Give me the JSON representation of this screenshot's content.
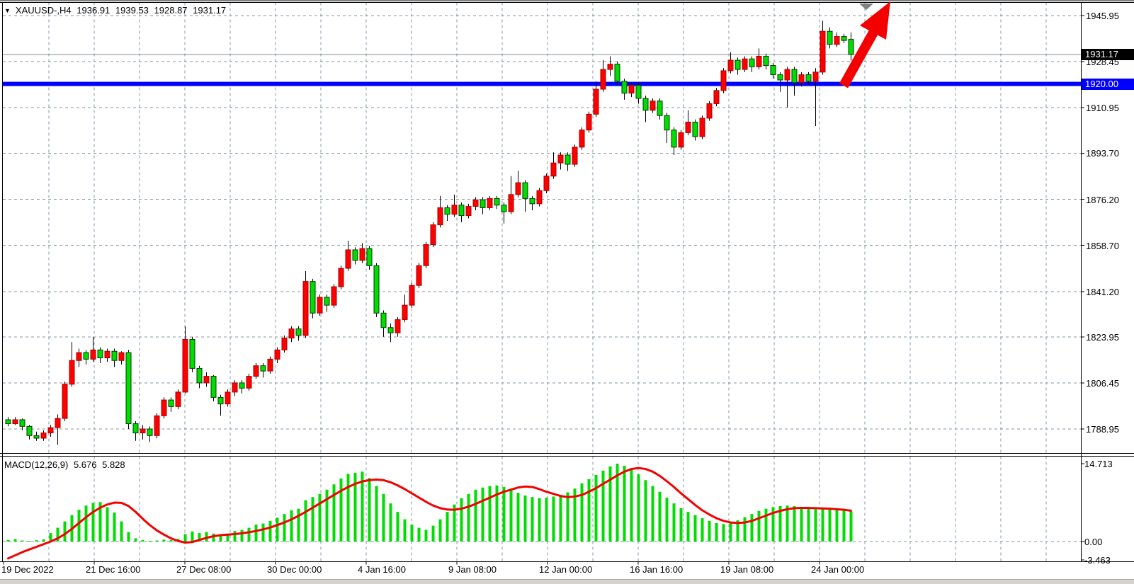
{
  "header": {
    "symbol": "XAUUSD-,H4",
    "open": "1936.91",
    "high": "1939.53",
    "low": "1928.87",
    "close": "1931.17"
  },
  "price_axis": {
    "labels": [
      {
        "text": "1945.95",
        "price": 1945.95
      },
      {
        "text": "1928.45",
        "price": 1928.45
      },
      {
        "text": "1910.95",
        "price": 1910.95
      },
      {
        "text": "1893.70",
        "price": 1893.7
      },
      {
        "text": "1876.20",
        "price": 1876.2
      },
      {
        "text": "1858.70",
        "price": 1858.7
      },
      {
        "text": "1841.20",
        "price": 1841.2
      },
      {
        "text": "1823.95",
        "price": 1823.95
      },
      {
        "text": "1806.45",
        "price": 1806.45
      },
      {
        "text": "1788.95",
        "price": 1788.95
      }
    ],
    "current_price_label": "1931.17",
    "level_label": "1920.00"
  },
  "time_axis": {
    "labels": [
      {
        "text": "19 Dec 2022",
        "k": -1
      },
      {
        "text": "21 Dec 16:00",
        "k": 1
      },
      {
        "text": "27 Dec 08:00",
        "k": 3
      },
      {
        "text": "30 Dec 00:00",
        "k": 5
      },
      {
        "text": "4 Jan 16:00",
        "k": 7
      },
      {
        "text": "9 Jan 08:00",
        "k": 9
      },
      {
        "text": "12 Jan 00:00",
        "k": 11
      },
      {
        "text": "16 Jan 16:00",
        "k": 13
      },
      {
        "text": "19 Jan 08:00",
        "k": 15
      },
      {
        "text": "24 Jan 00:00",
        "k": 17
      }
    ]
  },
  "macd_panel": {
    "label": "MACD(12,26,9)",
    "macd_value": "5.676",
    "signal_value": "5.828",
    "axis_labels": [
      {
        "text": "14.713",
        "value": 14.713
      },
      {
        "text": "0.00",
        "value": 0.0
      },
      {
        "text": "-3.463",
        "value": -3.463
      }
    ]
  },
  "colors": {
    "bull_candle": "#ff0000",
    "bull_border": "#a80000",
    "bear_candle": "#00dd00",
    "bear_border": "#003b00",
    "wick": "#000000",
    "grid": "#8696a6",
    "level_line": "#0000fe",
    "bid_line": "#8c8c8c",
    "macd_histogram": "#00dd00",
    "macd_signal": "#f40000",
    "arrow": "#f40000",
    "marker_triangle": "#808080",
    "pane_border": "#000000"
  },
  "chart_data": {
    "type": "candlestick",
    "symbol": "XAUUSD",
    "timeframe": "H4",
    "current_price": 1931.17,
    "horizontal_level": 1920.0,
    "price_gridlines": [
      1945.95,
      1928.45,
      1910.95,
      1893.7,
      1876.2,
      1858.7,
      1841.2,
      1823.95,
      1806.45,
      1788.95
    ],
    "candles_ohlc": [
      [
        1792.5,
        1793.5,
        1790.0,
        1791.0
      ],
      [
        1791.0,
        1793.5,
        1790.5,
        1792.5
      ],
      [
        1792.5,
        1793.0,
        1788.5,
        1790.0
      ],
      [
        1790.0,
        1790.5,
        1785.0,
        1786.5
      ],
      [
        1786.5,
        1788.0,
        1784.5,
        1785.5
      ],
      [
        1785.5,
        1788.5,
        1784.5,
        1787.5
      ],
      [
        1787.5,
        1790.5,
        1786.0,
        1789.5
      ],
      [
        1789.5,
        1794.5,
        1783.0,
        1793.0
      ],
      [
        1793.0,
        1807.0,
        1792.0,
        1806.0
      ],
      [
        1806.0,
        1822.0,
        1805.0,
        1815.0
      ],
      [
        1815.0,
        1819.5,
        1812.5,
        1818.0
      ],
      [
        1818.0,
        1819.0,
        1813.5,
        1815.5
      ],
      [
        1815.5,
        1824.0,
        1814.5,
        1819.0
      ],
      [
        1819.0,
        1820.0,
        1814.0,
        1816.0
      ],
      [
        1816.0,
        1819.5,
        1814.5,
        1818.5
      ],
      [
        1818.5,
        1819.5,
        1812.5,
        1815.0
      ],
      [
        1815.0,
        1818.5,
        1813.5,
        1818.0
      ],
      [
        1818.0,
        1819.0,
        1789.0,
        1791.0
      ],
      [
        1791.0,
        1792.0,
        1784.5,
        1787.5
      ],
      [
        1787.5,
        1790.5,
        1785.0,
        1789.0
      ],
      [
        1789.0,
        1790.0,
        1784.0,
        1786.5
      ],
      [
        1786.5,
        1795.0,
        1785.5,
        1794.0
      ],
      [
        1794.0,
        1801.0,
        1793.0,
        1800.0
      ],
      [
        1800.0,
        1801.0,
        1795.5,
        1797.5
      ],
      [
        1797.5,
        1804.0,
        1796.5,
        1803.0
      ],
      [
        1803.0,
        1828.0,
        1802.5,
        1823.0
      ],
      [
        1823.0,
        1824.0,
        1810.5,
        1812.0
      ],
      [
        1812.0,
        1813.0,
        1804.5,
        1806.5
      ],
      [
        1806.5,
        1810.5,
        1805.0,
        1809.0
      ],
      [
        1809.0,
        1809.5,
        1799.5,
        1801.0
      ],
      [
        1801.0,
        1802.0,
        1794.0,
        1798.5
      ],
      [
        1798.5,
        1804.0,
        1797.5,
        1803.0
      ],
      [
        1803.0,
        1807.5,
        1801.5,
        1806.5
      ],
      [
        1806.5,
        1807.5,
        1802.5,
        1804.5
      ],
      [
        1804.5,
        1810.0,
        1803.5,
        1809.0
      ],
      [
        1809.0,
        1814.0,
        1808.0,
        1813.0
      ],
      [
        1813.0,
        1814.0,
        1808.5,
        1811.0
      ],
      [
        1811.0,
        1816.5,
        1810.0,
        1815.5
      ],
      [
        1815.5,
        1820.0,
        1814.0,
        1819.0
      ],
      [
        1819.0,
        1824.5,
        1818.0,
        1823.5
      ],
      [
        1823.5,
        1828.0,
        1822.0,
        1827.0
      ],
      [
        1827.0,
        1828.0,
        1822.5,
        1824.5
      ],
      [
        1824.5,
        1849.0,
        1823.5,
        1845.0
      ],
      [
        1845.0,
        1846.0,
        1831.0,
        1833.0
      ],
      [
        1833.0,
        1840.0,
        1832.0,
        1839.0
      ],
      [
        1839.0,
        1840.0,
        1833.5,
        1836.0
      ],
      [
        1836.0,
        1844.0,
        1835.0,
        1843.0
      ],
      [
        1843.0,
        1851.0,
        1842.0,
        1850.0
      ],
      [
        1850.0,
        1860.5,
        1849.0,
        1857.0
      ],
      [
        1857.0,
        1858.0,
        1851.5,
        1853.0
      ],
      [
        1853.0,
        1859.5,
        1852.0,
        1857.5
      ],
      [
        1857.5,
        1858.5,
        1849.5,
        1851.0
      ],
      [
        1851.0,
        1852.0,
        1831.5,
        1833.0
      ],
      [
        1833.0,
        1834.0,
        1824.0,
        1827.5
      ],
      [
        1827.5,
        1829.0,
        1822.0,
        1825.5
      ],
      [
        1825.5,
        1831.5,
        1824.0,
        1830.5
      ],
      [
        1830.5,
        1840.0,
        1829.5,
        1836.0
      ],
      [
        1836.0,
        1844.5,
        1835.0,
        1843.5
      ],
      [
        1843.5,
        1852.0,
        1842.5,
        1851.0
      ],
      [
        1851.0,
        1860.0,
        1850.0,
        1859.0
      ],
      [
        1859.0,
        1867.5,
        1858.0,
        1866.5
      ],
      [
        1866.5,
        1877.5,
        1865.5,
        1873.0
      ],
      [
        1873.0,
        1874.0,
        1868.0,
        1870.5
      ],
      [
        1870.5,
        1878.0,
        1869.5,
        1874.0
      ],
      [
        1874.0,
        1875.0,
        1867.5,
        1870.0
      ],
      [
        1870.0,
        1874.5,
        1869.0,
        1873.5
      ],
      [
        1873.5,
        1877.0,
        1872.0,
        1876.0
      ],
      [
        1876.0,
        1877.0,
        1870.5,
        1873.0
      ],
      [
        1873.0,
        1877.5,
        1872.0,
        1876.5
      ],
      [
        1876.5,
        1877.5,
        1872.5,
        1874.0
      ],
      [
        1874.0,
        1875.0,
        1867.0,
        1871.5
      ],
      [
        1871.5,
        1885.0,
        1870.5,
        1878.0
      ],
      [
        1878.0,
        1887.0,
        1877.0,
        1882.5
      ],
      [
        1882.5,
        1883.5,
        1871.5,
        1876.5
      ],
      [
        1876.5,
        1877.5,
        1872.0,
        1874.5
      ],
      [
        1874.5,
        1880.5,
        1873.5,
        1879.5
      ],
      [
        1879.5,
        1886.0,
        1878.5,
        1885.0
      ],
      [
        1885.0,
        1894.0,
        1884.0,
        1890.0
      ],
      [
        1890.0,
        1894.0,
        1887.5,
        1893.0
      ],
      [
        1893.0,
        1894.0,
        1887.0,
        1889.5
      ],
      [
        1889.5,
        1897.0,
        1888.5,
        1896.0
      ],
      [
        1896.0,
        1903.5,
        1895.0,
        1902.5
      ],
      [
        1902.5,
        1909.5,
        1901.5,
        1908.5
      ],
      [
        1908.5,
        1921.0,
        1907.5,
        1918.0
      ],
      [
        1918.0,
        1929.0,
        1917.0,
        1925.5
      ],
      [
        1925.5,
        1930.5,
        1923.0,
        1927.5
      ],
      [
        1927.5,
        1928.5,
        1919.5,
        1921.0
      ],
      [
        1921.0,
        1922.0,
        1914.0,
        1916.5
      ],
      [
        1916.5,
        1920.5,
        1915.0,
        1919.5
      ],
      [
        1919.5,
        1920.5,
        1912.5,
        1914.5
      ],
      [
        1914.5,
        1915.5,
        1905.5,
        1910.0
      ],
      [
        1910.0,
        1914.5,
        1909.0,
        1913.5
      ],
      [
        1913.5,
        1914.5,
        1906.5,
        1908.0
      ],
      [
        1908.0,
        1909.0,
        1897.5,
        1902.5
      ],
      [
        1902.5,
        1903.5,
        1893.0,
        1896.0
      ],
      [
        1896.0,
        1902.5,
        1895.0,
        1901.5
      ],
      [
        1901.5,
        1910.0,
        1900.5,
        1905.5
      ],
      [
        1905.5,
        1906.5,
        1898.5,
        1900.0
      ],
      [
        1900.0,
        1908.0,
        1899.0,
        1907.0
      ],
      [
        1907.0,
        1913.5,
        1906.0,
        1912.5
      ],
      [
        1912.5,
        1918.5,
        1911.5,
        1917.5
      ],
      [
        1917.5,
        1926.0,
        1916.5,
        1925.0
      ],
      [
        1925.0,
        1932.0,
        1924.0,
        1929.0
      ],
      [
        1929.0,
        1930.0,
        1923.5,
        1925.5
      ],
      [
        1925.5,
        1930.5,
        1924.5,
        1929.5
      ],
      [
        1929.5,
        1930.5,
        1924.5,
        1926.5
      ],
      [
        1926.5,
        1933.5,
        1925.5,
        1930.5
      ],
      [
        1930.5,
        1931.5,
        1925.5,
        1927.0
      ],
      [
        1927.0,
        1928.0,
        1922.0,
        1923.5
      ],
      [
        1923.5,
        1924.5,
        1917.0,
        1921.5
      ],
      [
        1921.5,
        1926.5,
        1911.0,
        1925.5
      ],
      [
        1925.5,
        1926.5,
        1915.5,
        1920.5
      ],
      [
        1920.5,
        1924.5,
        1919.0,
        1923.5
      ],
      [
        1923.5,
        1924.5,
        1919.5,
        1921.0
      ],
      [
        1921.0,
        1926.0,
        1904.0,
        1924.5
      ],
      [
        1924.5,
        1944.0,
        1923.5,
        1940.0
      ],
      [
        1940.0,
        1941.5,
        1933.5,
        1935.0
      ],
      [
        1935.0,
        1939.5,
        1934.0,
        1938.0
      ],
      [
        1938.0,
        1939.0,
        1935.5,
        1936.5
      ],
      [
        1936.91,
        1939.53,
        1928.87,
        1931.17
      ]
    ],
    "macd": {
      "params": "12,26,9",
      "current_macd": 5.676,
      "current_signal": 5.828,
      "axis_range": [
        -3.463,
        14.713
      ],
      "histogram": [
        0.3,
        0.45,
        0.2,
        0.1,
        0.25,
        0.4,
        1.6,
        2.6,
        3.8,
        5.0,
        6.0,
        6.8,
        7.3,
        7.45,
        6.5,
        5.5,
        3.8,
        1.8,
        0.6,
        0.3,
        0.15,
        0.2,
        0.35,
        0.3,
        0.5,
        1.4,
        1.9,
        1.6,
        1.8,
        1.5,
        1.2,
        1.5,
        2.0,
        2.2,
        2.6,
        3.2,
        3.4,
        3.9,
        4.5,
        5.2,
        5.9,
        6.2,
        7.8,
        8.4,
        9.0,
        9.8,
        10.8,
        11.9,
        12.8,
        13.0,
        13.2,
        12.0,
        10.5,
        9.0,
        7.2,
        5.6,
        4.2,
        3.2,
        2.6,
        2.2,
        3.0,
        4.2,
        5.6,
        7.0,
        8.2,
        9.0,
        9.8,
        10.2,
        10.5,
        10.6,
        10.3,
        9.8,
        9.2,
        8.7,
        8.4,
        8.2,
        8.3,
        8.5,
        8.8,
        9.3,
        10.0,
        11.0,
        11.8,
        12.6,
        13.4,
        14.2,
        14.713,
        14.3,
        13.6,
        12.7,
        11.6,
        10.5,
        9.4,
        8.3,
        7.2,
        6.3,
        5.6,
        5.0,
        4.4,
        3.9,
        3.5,
        3.3,
        3.6,
        4.0,
        4.6,
        5.2,
        5.8,
        6.2,
        6.5,
        6.7,
        6.8,
        6.7,
        6.5,
        6.3,
        6.1,
        6.3,
        6.4,
        6.2,
        6.0,
        5.676
      ],
      "signal": [
        -3.2,
        -2.6,
        -2.0,
        -1.5,
        -1.0,
        -0.5,
        0.0,
        0.6,
        1.4,
        2.4,
        3.5,
        4.6,
        5.6,
        6.4,
        7.0,
        7.35,
        7.3,
        6.7,
        5.6,
        4.3,
        3.1,
        2.1,
        1.3,
        0.6,
        0.1,
        -0.2,
        -0.1,
        0.3,
        0.7,
        1.0,
        1.2,
        1.3,
        1.4,
        1.55,
        1.75,
        2.0,
        2.3,
        2.65,
        3.1,
        3.6,
        4.2,
        4.85,
        5.6,
        6.4,
        7.2,
        8.0,
        8.8,
        9.6,
        10.3,
        10.9,
        11.35,
        11.6,
        11.7,
        11.6,
        11.2,
        10.6,
        9.9,
        9.1,
        8.3,
        7.5,
        6.8,
        6.3,
        6.05,
        6.0,
        6.2,
        6.6,
        7.1,
        7.7,
        8.3,
        8.9,
        9.4,
        9.8,
        10.2,
        10.4,
        10.3,
        9.9,
        9.4,
        9.0,
        8.6,
        8.4,
        8.5,
        8.8,
        9.4,
        10.1,
        10.9,
        11.7,
        12.5,
        13.2,
        13.7,
        13.9,
        13.7,
        13.2,
        12.4,
        11.4,
        10.3,
        9.1,
        8.0,
        6.9,
        5.9,
        5.1,
        4.4,
        3.9,
        3.6,
        3.5,
        3.6,
        3.9,
        4.4,
        4.9,
        5.4,
        5.8,
        6.1,
        6.3,
        6.35,
        6.35,
        6.3,
        6.25,
        6.2,
        6.1,
        6.0,
        5.828
      ]
    },
    "annotations": {
      "red_up_arrow": "large red arrow from the 1920.00 level pointing up-right past chart top",
      "gray_marker": "small gray down-triangle on top border"
    }
  }
}
